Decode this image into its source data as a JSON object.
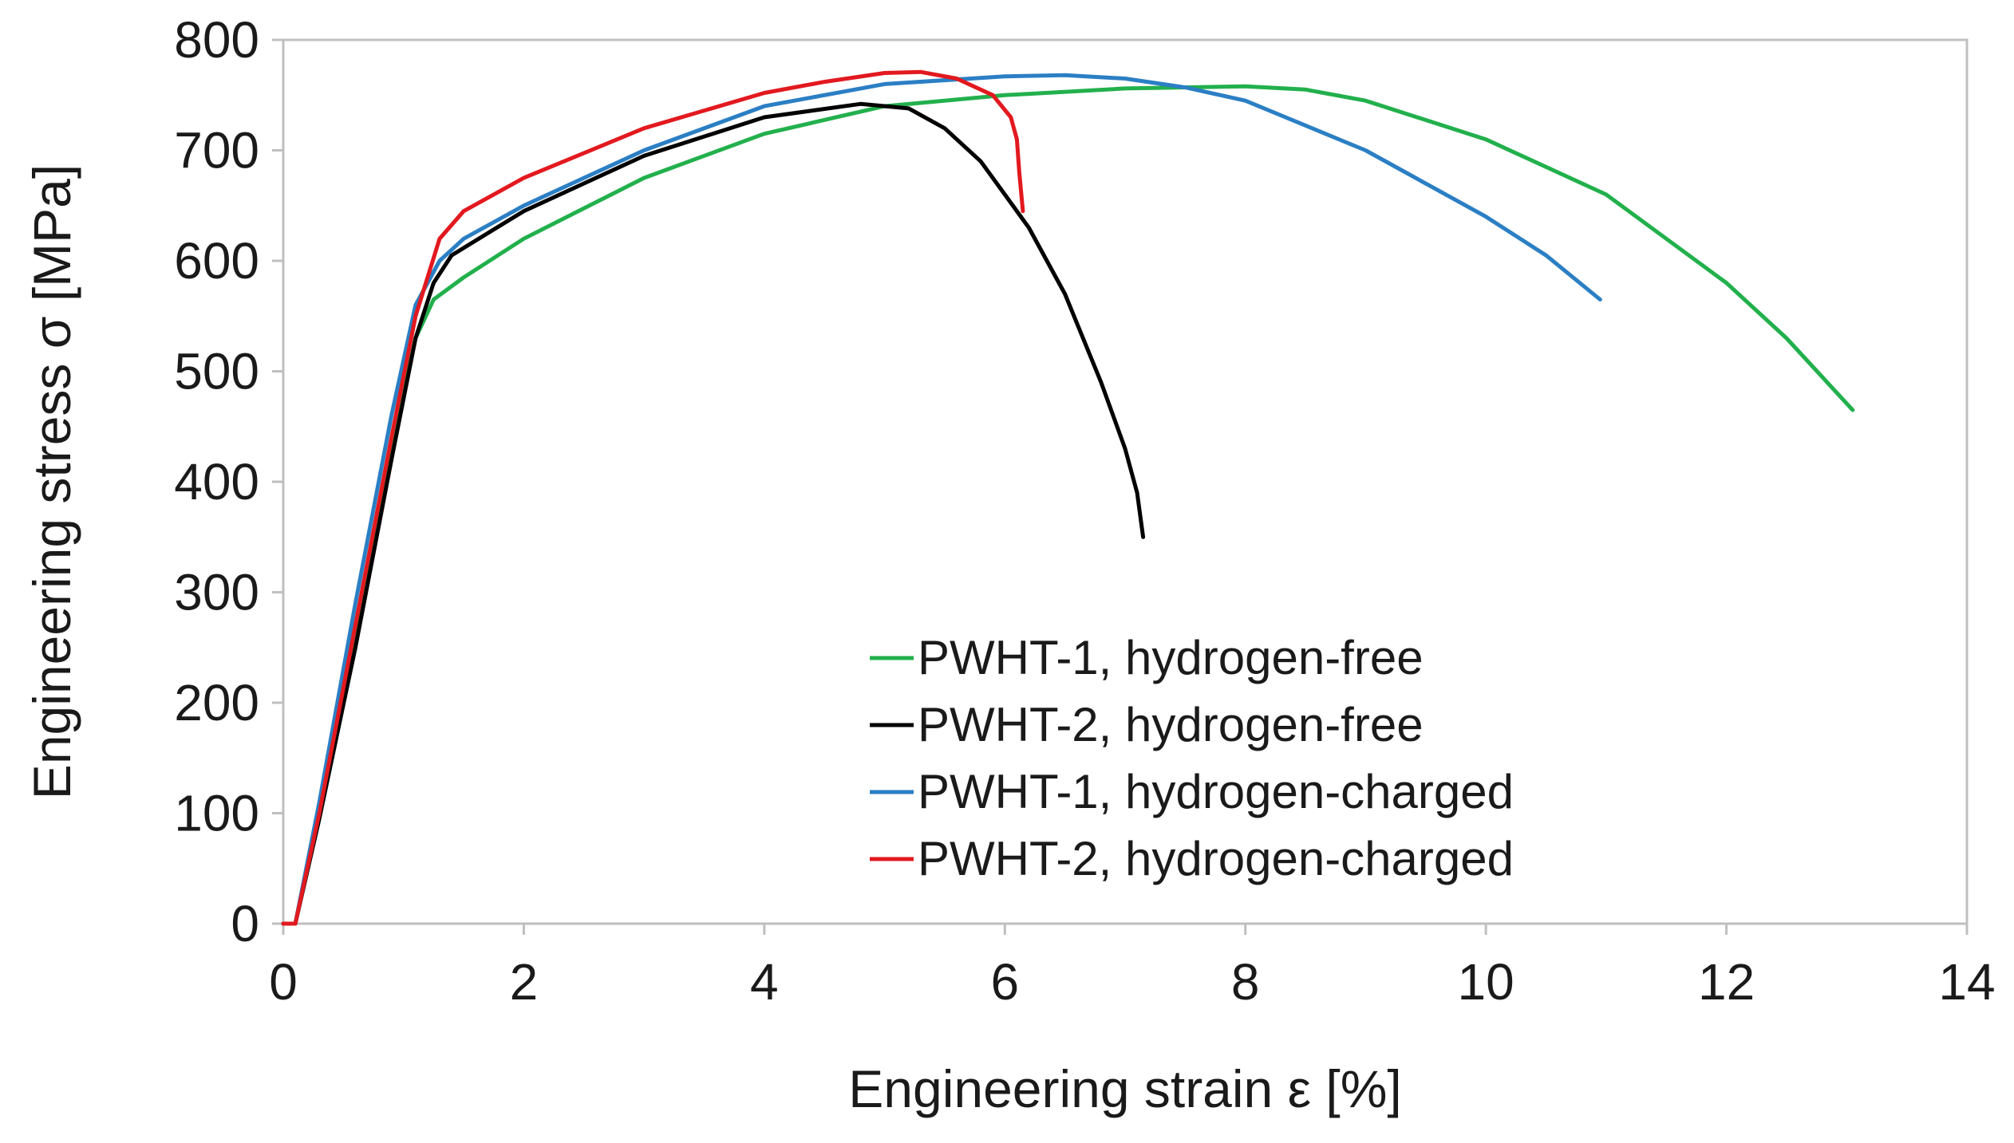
{
  "chart_data": {
    "type": "line",
    "title": "",
    "xlabel": "Engineering strain ε [%]",
    "ylabel": "Engineering stress σ [MPa]",
    "xlim": [
      0,
      14
    ],
    "ylim": [
      0,
      800
    ],
    "xticks": [
      0,
      2,
      4,
      6,
      8,
      10,
      12,
      14
    ],
    "yticks": [
      0,
      100,
      200,
      300,
      400,
      500,
      600,
      700,
      800
    ],
    "grid": false,
    "legend_position": "bottom-center",
    "series": [
      {
        "name": "PWHT-1, hydrogen-free",
        "color": "#22b04c",
        "x": [
          0,
          0.1,
          0.3,
          0.6,
          0.9,
          1.1,
          1.25,
          1.5,
          2.0,
          3.0,
          4.0,
          5.0,
          6.0,
          7.0,
          8.0,
          8.5,
          9.0,
          10.0,
          11.0,
          12.0,
          12.5,
          13.05
        ],
        "y": [
          0,
          0,
          100,
          260,
          430,
          530,
          565,
          585,
          620,
          675,
          715,
          740,
          750,
          756,
          758,
          755,
          745,
          710,
          660,
          580,
          530,
          465
        ]
      },
      {
        "name": "PWHT-2, hydrogen-free",
        "color": "#000000",
        "x": [
          0,
          0.1,
          0.3,
          0.6,
          0.9,
          1.1,
          1.25,
          1.4,
          1.7,
          2.0,
          3.0,
          4.0,
          4.8,
          5.2,
          5.5,
          5.8,
          6.0,
          6.2,
          6.5,
          6.8,
          7.0,
          7.1,
          7.15
        ],
        "y": [
          0,
          0,
          95,
          250,
          420,
          530,
          580,
          605,
          625,
          645,
          695,
          730,
          742,
          738,
          720,
          690,
          660,
          630,
          570,
          490,
          430,
          390,
          350
        ]
      },
      {
        "name": "PWHT-1, hydrogen-charged",
        "color": "#2b7fc4",
        "x": [
          0,
          0.1,
          0.3,
          0.6,
          0.9,
          1.1,
          1.3,
          1.5,
          2.0,
          3.0,
          4.0,
          5.0,
          6.0,
          6.5,
          7.0,
          7.5,
          8.0,
          9.0,
          10.0,
          10.5,
          10.95
        ],
        "y": [
          0,
          0,
          110,
          290,
          460,
          560,
          600,
          620,
          650,
          700,
          740,
          760,
          767,
          768,
          765,
          757,
          745,
          700,
          640,
          605,
          565
        ]
      },
      {
        "name": "PWHT-2, hydrogen-charged",
        "color": "#e2191f",
        "x": [
          0,
          0.1,
          0.3,
          0.6,
          0.9,
          1.1,
          1.3,
          1.5,
          2.0,
          3.0,
          4.0,
          4.5,
          5.0,
          5.3,
          5.6,
          5.9,
          6.05,
          6.1,
          6.12,
          6.15
        ],
        "y": [
          0,
          0,
          100,
          270,
          440,
          550,
          620,
          645,
          675,
          720,
          752,
          762,
          770,
          771,
          765,
          750,
          730,
          710,
          680,
          645
        ]
      }
    ]
  }
}
